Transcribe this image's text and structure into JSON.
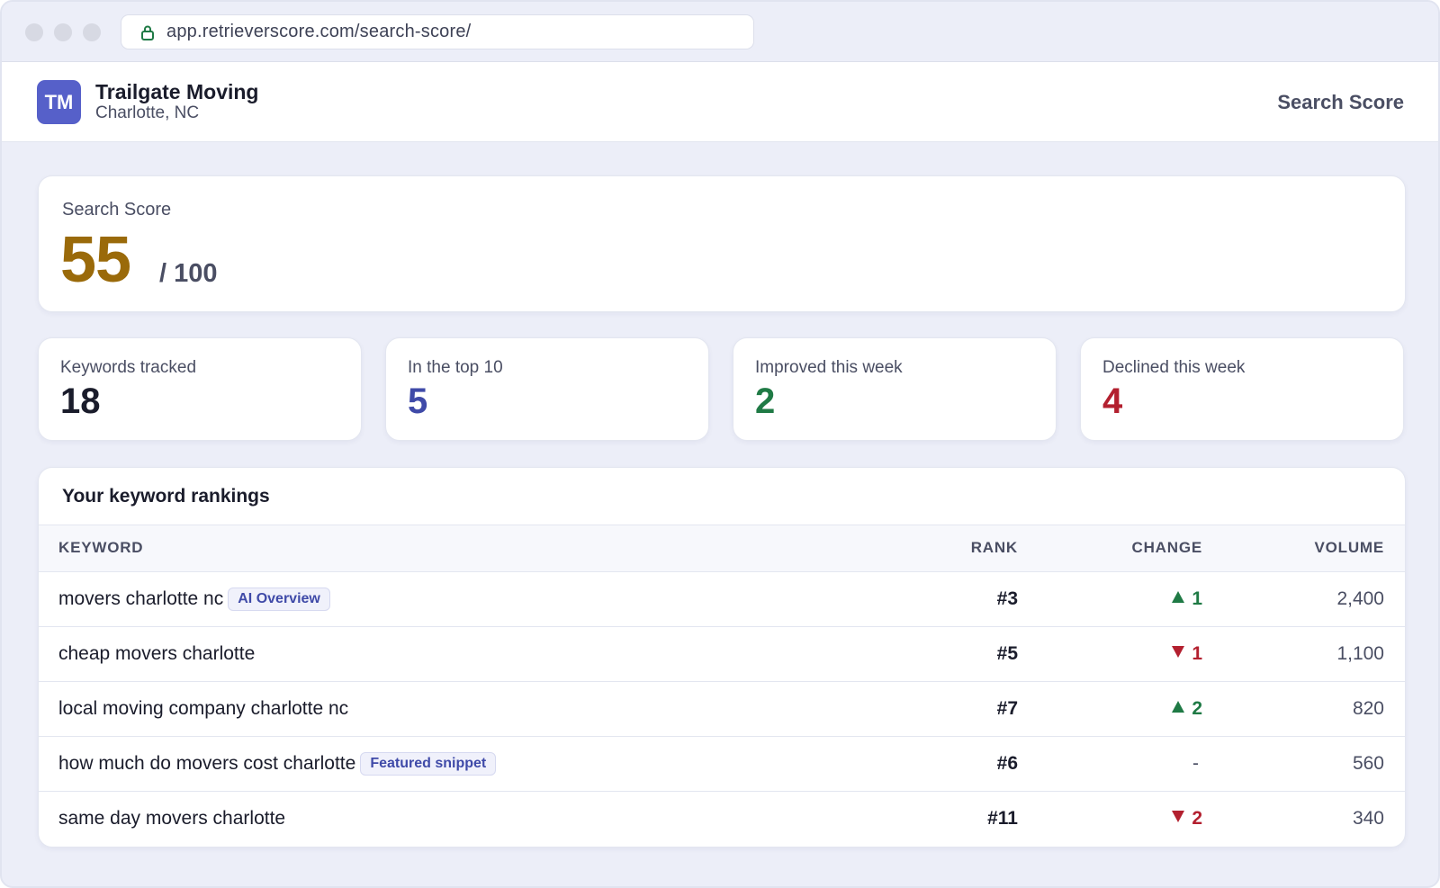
{
  "browser": {
    "url": "app.retrieverscore.com/search-score/"
  },
  "header": {
    "avatar_initials": "TM",
    "business_name": "Trailgate Moving",
    "location": "Charlotte, NC",
    "nav_label": "Search Score"
  },
  "score": {
    "label": "Search Score",
    "value": "55",
    "max": "/ 100",
    "color": "#9a6a0a"
  },
  "stats": [
    {
      "label": "Keywords tracked",
      "value": "18",
      "color": "#1a1c2b"
    },
    {
      "label": "In the top 10",
      "value": "5",
      "color": "#3f4aa8"
    },
    {
      "label": "Improved this week",
      "value": "2",
      "color": "#1f7a45"
    },
    {
      "label": "Declined this week",
      "value": "4",
      "color": "#b3202f"
    }
  ],
  "rankings": {
    "title": "Your keyword rankings",
    "columns": {
      "keyword": "KEYWORD",
      "rank": "RANK",
      "change": "CHANGE",
      "volume": "VOLUME"
    },
    "rows": [
      {
        "keyword": "movers charlotte nc",
        "badge": "AI Overview",
        "rank": "#3",
        "direction": "up",
        "change": "1",
        "volume": "2,400"
      },
      {
        "keyword": "cheap movers charlotte",
        "badge": "",
        "rank": "#5",
        "direction": "down",
        "change": "1",
        "volume": "1,100"
      },
      {
        "keyword": "local moving company charlotte nc",
        "badge": "",
        "rank": "#7",
        "direction": "up",
        "change": "2",
        "volume": "820"
      },
      {
        "keyword": "how much do movers cost charlotte",
        "badge": "Featured snippet",
        "rank": "#6",
        "direction": "none",
        "change": "-",
        "volume": "560"
      },
      {
        "keyword": "same day movers charlotte",
        "badge": "",
        "rank": "#11",
        "direction": "down",
        "change": "2",
        "volume": "340"
      }
    ]
  },
  "colors": {
    "up": "#1f7a45",
    "down": "#b3202f",
    "neutral": "#4a4e63"
  }
}
